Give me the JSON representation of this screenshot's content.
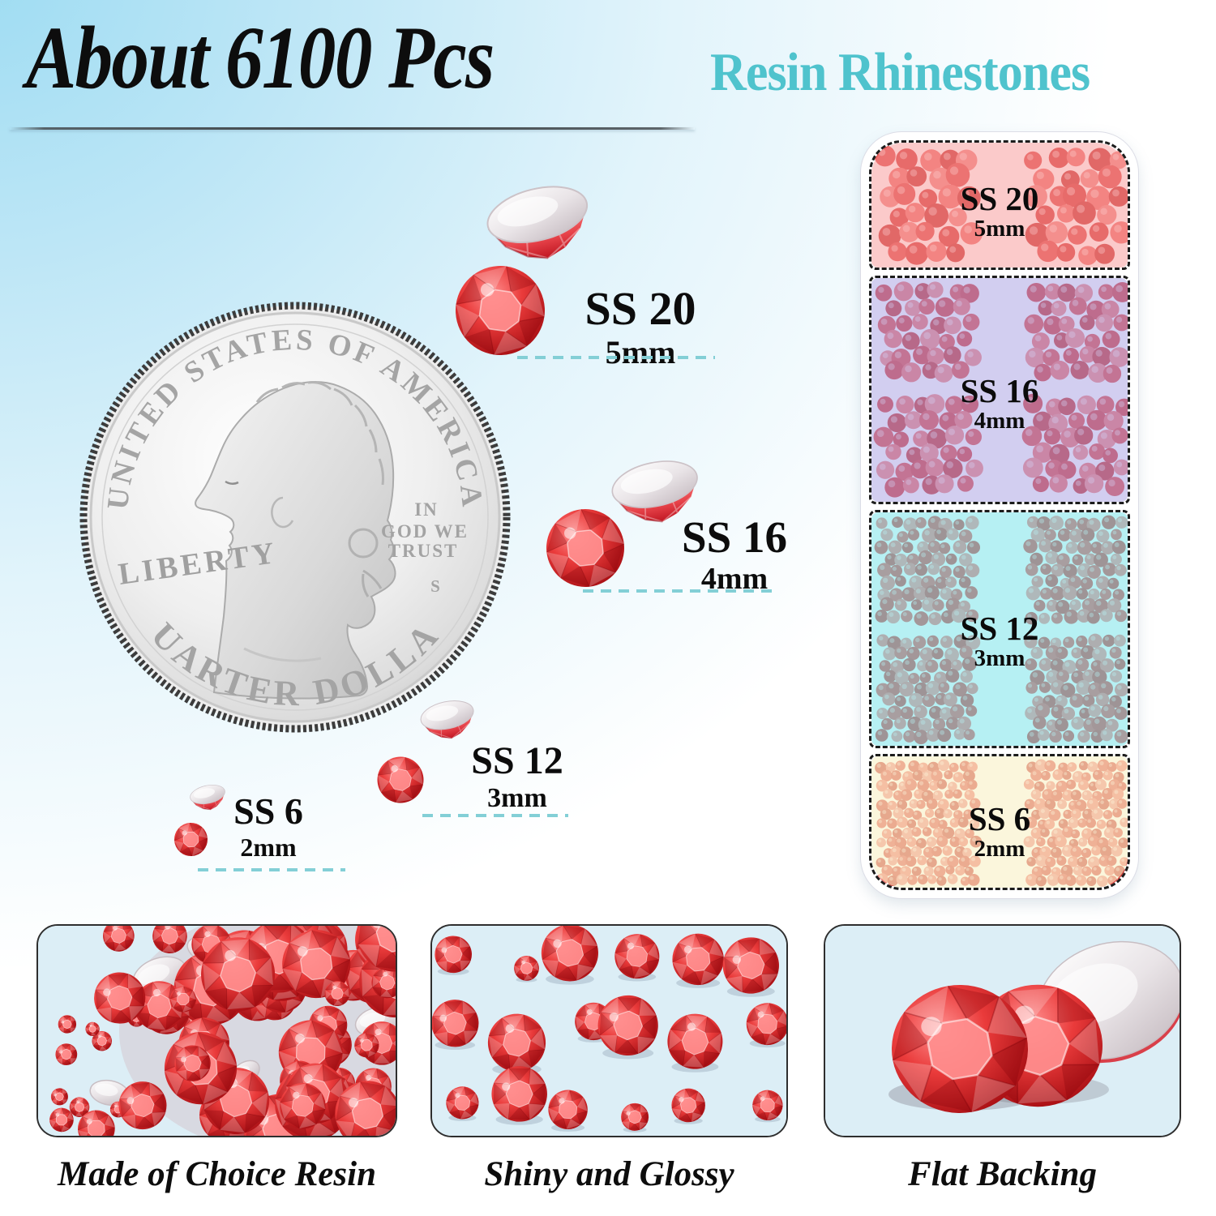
{
  "header": {
    "title": "About 6100 Pcs",
    "subtitle": "Resin Rhinestones"
  },
  "coin": {
    "top_text": "UNITED STATES OF AMERICA",
    "left_text": "LIBERTY",
    "motto": [
      "IN",
      "GOD WE",
      "TRUST"
    ],
    "mint_mark": "S",
    "bottom_text": "QUARTER DOLLAR"
  },
  "sizes": [
    {
      "label": "SS 20",
      "size": "5mm"
    },
    {
      "label": "SS 16",
      "size": "4mm"
    },
    {
      "label": "SS 12",
      "size": "3mm"
    },
    {
      "label": "SS 6",
      "size": "2mm"
    }
  ],
  "box": {
    "sections": [
      {
        "label": "SS 20",
        "size": "5mm"
      },
      {
        "label": "SS 16",
        "size": "4mm"
      },
      {
        "label": "SS 12",
        "size": "3mm"
      },
      {
        "label": "SS 6",
        "size": "2mm"
      }
    ]
  },
  "panels": [
    {
      "caption": "Made of Choice Resin"
    },
    {
      "caption": "Shiny and Glossy"
    },
    {
      "caption": "Flat Backing"
    }
  ],
  "colors": {
    "accent_teal": "#4fc3cd",
    "dash_teal": "#83cfd6",
    "gem_red": "#e23a3a",
    "gem_red_dark": "#a50d12",
    "gem_red_light": "#ff8a8a",
    "tint_ss20": "rgba(247,153,153,0.52)",
    "tint_ss16": "rgba(165,157,226,0.50)",
    "tint_ss12": "rgba(122,228,234,0.55)",
    "tint_ss6": "rgba(248,241,198,0.62)",
    "panel_bg": "#dceef6"
  }
}
